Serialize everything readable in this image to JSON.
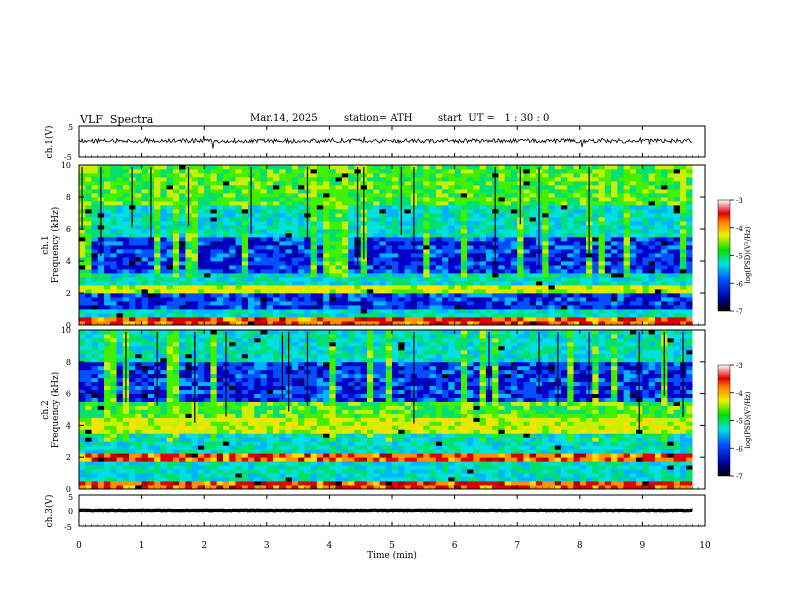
{
  "header": {
    "title": "VLF  Spectra",
    "date": "Mar.14, 2025",
    "station": "station= ATH",
    "start": "start  UT =   1 : 30 : 0"
  },
  "chart_data": [
    {
      "type": "line",
      "panel": "ch1-waveform",
      "ylabel": "ch.1(V)",
      "ylim": [
        -5,
        5
      ],
      "y_ticks": [
        "5",
        "-5"
      ],
      "x_range_min": [
        0,
        9.8
      ],
      "series": [
        {
          "color": "#000000",
          "mean": 0.2,
          "noise_amplitude": 1.0
        }
      ]
    },
    {
      "type": "heatmap",
      "panel": "ch1-spectrogram",
      "ylabel": "ch.1",
      "ylabel2": "Frequency  (kHz)",
      "ylim": [
        0,
        10
      ],
      "y_ticks": [
        "0",
        "2",
        "4",
        "6",
        "8",
        "10"
      ],
      "x_range_min": [
        0,
        9.8
      ],
      "colorbar": {
        "label": "log(PSD)(V²/Hz)",
        "range": [
          -7,
          -3
        ],
        "ticks": [
          "-3",
          "-4",
          "-5",
          "-6",
          "-7"
        ]
      },
      "bands_khz": [
        {
          "from": 0,
          "to": 0.6,
          "level": "red"
        },
        {
          "from": 0.6,
          "to": 1.0,
          "level": "cyan"
        },
        {
          "from": 1.0,
          "to": 2.0,
          "level": "blue"
        },
        {
          "from": 2.0,
          "to": 2.5,
          "level": "yellow"
        },
        {
          "from": 2.5,
          "to": 3.3,
          "level": "cyan"
        },
        {
          "from": 3.3,
          "to": 5.4,
          "level": "blue"
        },
        {
          "from": 5.4,
          "to": 7.5,
          "level": "cyan"
        },
        {
          "from": 7.5,
          "to": 10,
          "level": "green"
        }
      ]
    },
    {
      "type": "heatmap",
      "panel": "ch2-spectrogram",
      "ylabel": "ch.2",
      "ylabel2": "Frequency  (kHz)",
      "ylim": [
        0,
        10
      ],
      "y_ticks": [
        "0",
        "2",
        "4",
        "6",
        "8",
        "10"
      ],
      "x_range_min": [
        0,
        9.8
      ],
      "colorbar": {
        "label": "log(PSD)(V²/Hz)",
        "range": [
          -7,
          -3
        ],
        "ticks": [
          "-3",
          "-4",
          "-5",
          "-6",
          "-7"
        ]
      },
      "bands_khz": [
        {
          "from": 0,
          "to": 0.5,
          "level": "red"
        },
        {
          "from": 0.5,
          "to": 1.8,
          "level": "cyan"
        },
        {
          "from": 1.8,
          "to": 2.3,
          "level": "red"
        },
        {
          "from": 2.3,
          "to": 3.5,
          "level": "cyan"
        },
        {
          "from": 3.5,
          "to": 4.6,
          "level": "yellow"
        },
        {
          "from": 4.6,
          "to": 5.5,
          "level": "green"
        },
        {
          "from": 5.5,
          "to": 8.0,
          "level": "blue"
        },
        {
          "from": 8.0,
          "to": 10,
          "level": "cyan"
        }
      ]
    },
    {
      "type": "line",
      "panel": "ch3-waveform",
      "ylabel": "ch.3(V)",
      "ylim": [
        -5,
        5
      ],
      "y_ticks": [
        "5",
        "0",
        "-5"
      ],
      "x_range_min": [
        0,
        9.8
      ],
      "series": [
        {
          "color": "#000000",
          "mean": 0,
          "noise_amplitude": 0.15
        }
      ]
    }
  ],
  "x_axis": {
    "label": "Time  (min)",
    "ticks": [
      "0",
      "1",
      "2",
      "3",
      "4",
      "5",
      "6",
      "7",
      "8",
      "9",
      "10"
    ],
    "xlim": [
      0,
      10
    ]
  }
}
